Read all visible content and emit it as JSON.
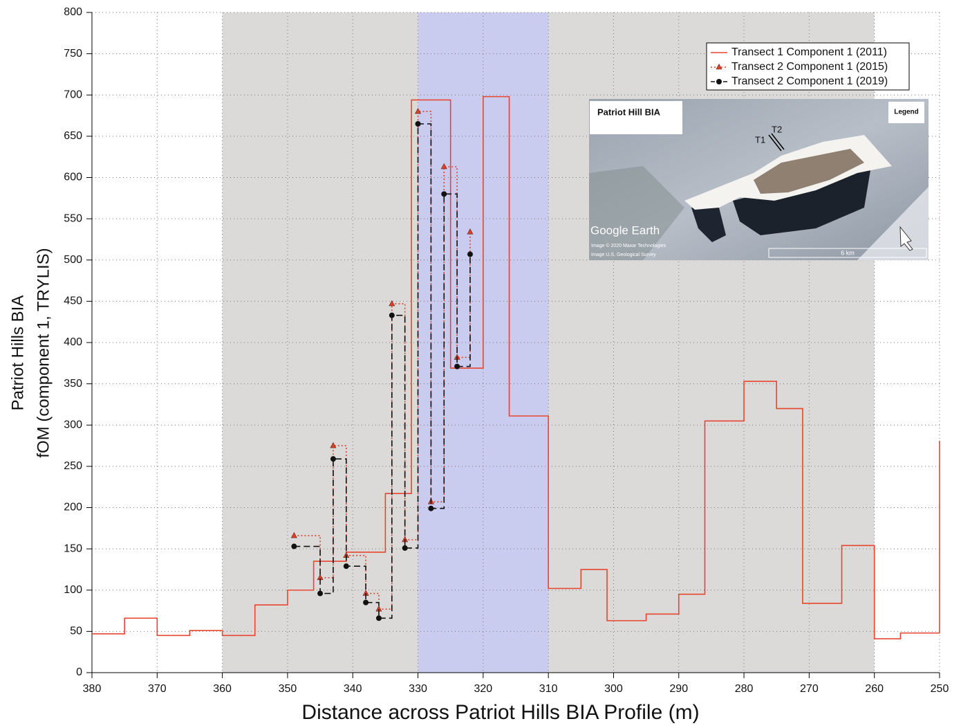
{
  "chart_data": {
    "type": "line",
    "xlabel": "Distance across Patriot Hills BIA Profile (m)",
    "ylabel": [
      "Patriot Hills BIA",
      "fOM (component 1, TRYLIS)"
    ],
    "xlim": [
      380,
      250
    ],
    "ylim": [
      0,
      800
    ],
    "xticks": [
      380,
      370,
      360,
      350,
      340,
      330,
      320,
      310,
      300,
      290,
      280,
      270,
      260,
      250
    ],
    "yticks": [
      0,
      50,
      100,
      150,
      200,
      250,
      300,
      350,
      400,
      450,
      500,
      550,
      600,
      650,
      700,
      750,
      800
    ],
    "grid": true,
    "legend": "upper right",
    "drawstyle": "steps-post",
    "bands": [
      {
        "range": [
          360,
          260
        ],
        "color": "#dcd9d9"
      },
      {
        "range": [
          330,
          310
        ],
        "color": "#c9ccef"
      }
    ],
    "series": [
      {
        "name": "Transect 1 Component 1 (2011)",
        "color": "#e8452e",
        "dash": "none",
        "marker": "none",
        "x": [
          380,
          375,
          370,
          365,
          360,
          355,
          350,
          346,
          341,
          335,
          331,
          325,
          320,
          316,
          310,
          305,
          301,
          295,
          290,
          286,
          280,
          275,
          271,
          265,
          260,
          256,
          250
        ],
        "values": [
          47,
          66,
          45,
          51,
          45,
          82,
          100,
          135,
          146,
          217,
          694,
          369,
          698,
          311,
          102,
          125,
          63,
          71,
          95,
          305,
          353,
          320,
          84,
          154,
          41,
          48,
          281
        ]
      },
      {
        "name": "Transect 2 Component 1 (2015)",
        "color": "#d9432c",
        "dash": "2 3",
        "marker": "triangle",
        "x": [
          349,
          345,
          343,
          341,
          338,
          336,
          334,
          332,
          330,
          328,
          326,
          324,
          322
        ],
        "values": [
          166,
          115,
          275,
          142,
          96,
          77,
          447,
          161,
          680,
          207,
          613,
          382,
          534
        ]
      },
      {
        "name": "Transect 2 Component 1 (2019)",
        "color": "#111111",
        "dash": "9 5",
        "marker": "circle",
        "x": [
          349,
          345,
          343,
          341,
          338,
          336,
          334,
          332,
          330,
          328,
          326,
          324,
          322
        ],
        "values": [
          153,
          96,
          259,
          129,
          85,
          66,
          433,
          151,
          665,
          199,
          580,
          371,
          507
        ]
      }
    ]
  },
  "inset": {
    "title": "Patriot Hill BIA",
    "legend": "Legend",
    "t1": "T1",
    "t2": "T2",
    "brand": "Google Earth",
    "credit1": "Image © 2020 Maxar Technologies",
    "credit2": "Image U.S. Geological Survey",
    "scale": "6 km"
  }
}
